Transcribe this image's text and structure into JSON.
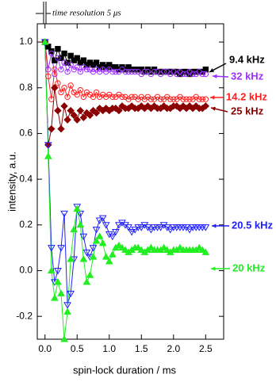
{
  "chart_data": {
    "type": "line",
    "annotation": "time resolution 5 μs",
    "x_label": "spin-lock duration / ms",
    "y_label": "intensity, a.u.",
    "x": [
      0,
      0.05,
      0.1,
      0.15,
      0.2,
      0.25,
      0.3,
      0.35,
      0.4,
      0.45,
      0.5,
      0.55,
      0.6,
      0.65,
      0.7,
      0.75,
      0.8,
      0.85,
      0.9,
      0.95,
      1.0,
      1.05,
      1.1,
      1.15,
      1.2,
      1.25,
      1.3,
      1.35,
      1.4,
      1.45,
      1.5,
      1.55,
      1.6,
      1.65,
      1.7,
      1.75,
      1.8,
      1.85,
      1.9,
      1.95,
      2.0,
      2.05,
      2.1,
      2.15,
      2.2,
      2.25,
      2.3,
      2.35,
      2.4,
      2.45,
      2.5
    ],
    "xlim": [
      -0.12,
      2.78
    ],
    "xticks": [
      {
        "value": 0,
        "label": "0.0"
      },
      0.5,
      {
        "value": 1,
        "label": "1.0"
      },
      1.5,
      {
        "value": 2,
        "label": "2.0"
      },
      2.5
    ],
    "ylim": [
      -0.3,
      1.08
    ],
    "yticks": [
      -0.2,
      {
        "value": 0,
        "label": "0.0"
      },
      0.2,
      0.4,
      0.6,
      0.8,
      {
        "value": 1,
        "label": "1.0"
      }
    ],
    "series": [
      {
        "name": "9.4 kHz",
        "color": "#000000",
        "marker": "square",
        "filled": true,
        "values": [
          1.0,
          0.98,
          0.96,
          0.92,
          0.97,
          0.93,
          0.95,
          0.91,
          0.94,
          0.92,
          0.93,
          0.91,
          0.92,
          0.9,
          0.91,
          0.9,
          0.91,
          0.89,
          0.9,
          0.89,
          0.9,
          0.89,
          0.89,
          0.88,
          0.89,
          0.88,
          0.89,
          0.88,
          0.88,
          0.88,
          0.88,
          0.87,
          0.88,
          0.87,
          0.88,
          0.87,
          0.87,
          0.87,
          0.87,
          0.87,
          0.87,
          0.87,
          0.86,
          0.87,
          0.87,
          0.86,
          0.87,
          0.87,
          0.87,
          0.87,
          0.88
        ]
      },
      {
        "name": "32 kHz",
        "color": "#9b30ff",
        "marker": "circle",
        "filled": false,
        "values": [
          1.0,
          0.88,
          0.95,
          0.86,
          0.93,
          0.88,
          0.91,
          0.87,
          0.9,
          0.88,
          0.89,
          0.87,
          0.89,
          0.88,
          0.88,
          0.87,
          0.88,
          0.87,
          0.88,
          0.87,
          0.88,
          0.87,
          0.87,
          0.87,
          0.88,
          0.87,
          0.87,
          0.87,
          0.87,
          0.87,
          0.86,
          0.87,
          0.87,
          0.86,
          0.87,
          0.87,
          0.86,
          0.87,
          0.87,
          0.86,
          0.87,
          0.86,
          0.87,
          0.86,
          0.86,
          0.87,
          0.86,
          0.86,
          0.87,
          0.86,
          0.86
        ]
      },
      {
        "name": "14.2 kHz",
        "color": "#ff2020",
        "marker": "circle",
        "filled": false,
        "values": [
          1.0,
          0.85,
          0.75,
          0.88,
          0.82,
          0.78,
          0.8,
          0.76,
          0.81,
          0.78,
          0.77,
          0.79,
          0.76,
          0.78,
          0.77,
          0.76,
          0.78,
          0.76,
          0.77,
          0.76,
          0.77,
          0.76,
          0.76,
          0.77,
          0.76,
          0.76,
          0.75,
          0.76,
          0.76,
          0.75,
          0.76,
          0.75,
          0.76,
          0.75,
          0.75,
          0.76,
          0.75,
          0.75,
          0.76,
          0.75,
          0.75,
          0.75,
          0.76,
          0.75,
          0.75,
          0.75,
          0.75,
          0.76,
          0.75,
          0.75,
          0.75
        ]
      },
      {
        "name": "25 kHz",
        "color": "#8b0000",
        "marker": "diamond",
        "filled": true,
        "values": [
          1.0,
          0.55,
          0.62,
          0.8,
          0.7,
          0.62,
          0.72,
          0.66,
          0.7,
          0.68,
          0.66,
          0.7,
          0.67,
          0.69,
          0.68,
          0.7,
          0.69,
          0.71,
          0.7,
          0.71,
          0.7,
          0.71,
          0.71,
          0.7,
          0.72,
          0.71,
          0.71,
          0.72,
          0.71,
          0.71,
          0.72,
          0.71,
          0.72,
          0.71,
          0.72,
          0.71,
          0.71,
          0.72,
          0.71,
          0.71,
          0.72,
          0.72,
          0.71,
          0.72,
          0.71,
          0.72,
          0.71,
          0.72,
          0.71,
          0.71,
          0.72
        ]
      },
      {
        "name": "20.5 kHz",
        "color": "#2020ff",
        "marker": "triangle-down",
        "filled": false,
        "values": [
          1.0,
          0.55,
          0.1,
          -0.05,
          0.0,
          0.1,
          0.25,
          -0.15,
          -0.1,
          0.05,
          0.28,
          0.25,
          0.15,
          0.08,
          0.06,
          0.1,
          0.18,
          0.22,
          0.23,
          0.2,
          0.16,
          0.15,
          0.17,
          0.2,
          0.21,
          0.2,
          0.19,
          0.17,
          0.18,
          0.19,
          0.19,
          0.2,
          0.19,
          0.18,
          0.19,
          0.19,
          0.19,
          0.2,
          0.19,
          0.18,
          0.19,
          0.19,
          0.19,
          0.19,
          0.19,
          0.18,
          0.19,
          0.19,
          0.19,
          0.19,
          0.19
        ]
      },
      {
        "name": "20 kHz",
        "color": "#22ee22",
        "marker": "triangle-up",
        "filled": true,
        "values": [
          1.0,
          0.5,
          0.0,
          -0.12,
          -0.05,
          -0.1,
          -0.3,
          -0.18,
          0.05,
          0.18,
          0.27,
          0.2,
          0.05,
          -0.05,
          -0.02,
          0.06,
          0.13,
          0.15,
          0.12,
          0.06,
          0.04,
          0.07,
          0.1,
          0.11,
          0.1,
          0.09,
          0.08,
          0.09,
          0.1,
          0.1,
          0.09,
          0.08,
          0.09,
          0.1,
          0.09,
          0.09,
          0.09,
          0.1,
          0.09,
          0.08,
          0.09,
          0.09,
          0.1,
          0.09,
          0.09,
          0.09,
          0.09,
          0.09,
          0.1,
          0.09,
          0.08
        ]
      }
    ]
  }
}
